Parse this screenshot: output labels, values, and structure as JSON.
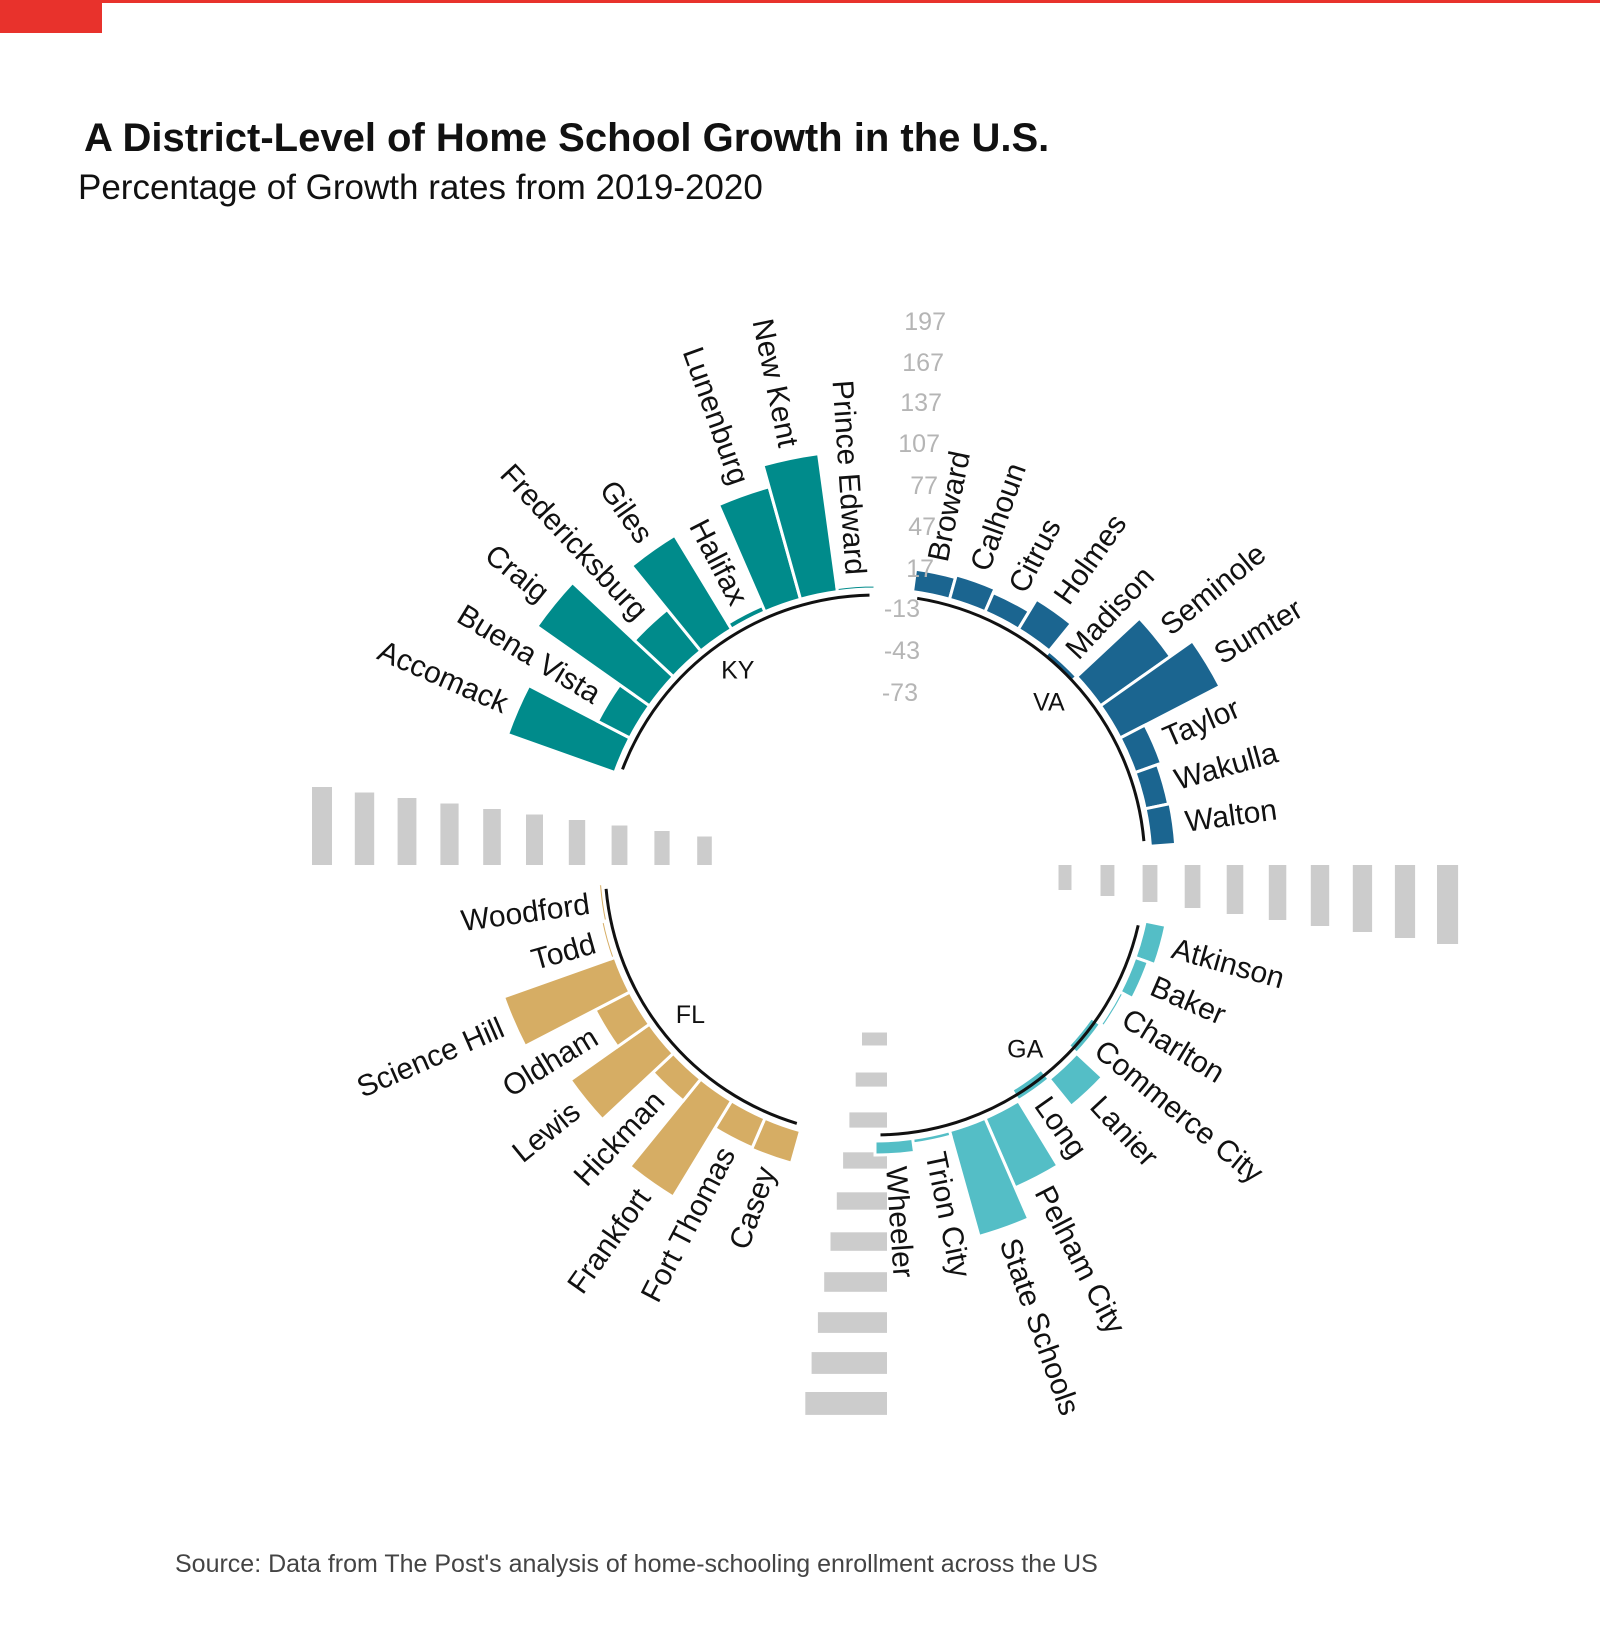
{
  "title": "A District-Level of Home School Growth in the U.S.",
  "subtitle": "Percentage of Growth rates from 2019-2020",
  "source": "Source:  Data from The Post's analysis of home-schooling enrollment across the US",
  "colors": {
    "KY": "#008b8b",
    "VA": "#1b6590",
    "GA": "#54bec6",
    "FL": "#d6ad64",
    "placeholder": "#cccccc",
    "accent": "#e8322c"
  },
  "chart_data": {
    "type": "bar",
    "ylim": [
      -73,
      197
    ],
    "y_ticks": [
      "197",
      "167",
      "137",
      "107",
      "77",
      "47",
      "17",
      "-13",
      "-43",
      "-73"
    ],
    "groups": [
      {
        "name": "KY",
        "categories": [
          "Accomack",
          "Buena Vista",
          "Craig",
          "Fredericksburg",
          "Giles",
          "Halifax",
          "Lunenburg",
          "New Kent",
          "Prince Edward"
        ],
        "values": [
          79,
          24,
          96,
          36,
          76,
          3,
          81,
          97,
          0
        ]
      },
      {
        "name": "VA",
        "categories": [
          "Broward",
          "Calhoun",
          "Citrus",
          "Holmes",
          "Madison",
          "Seminole",
          "Sumter",
          "Taylor",
          "Wakulla",
          "Walton"
        ],
        "values": [
          14,
          16,
          13,
          23,
          -8,
          59,
          78,
          18,
          15,
          16
        ]
      },
      {
        "name": "GA",
        "categories": [
          "Atkinson",
          "Baker",
          "Charlton",
          "Commerce City",
          "Lanier",
          "Long",
          "Pelham City",
          "State Schools",
          "Trion City",
          "Wheeler"
        ],
        "values": [
          13,
          8,
          1,
          -10,
          23,
          -11,
          52,
          76,
          2,
          8
        ]
      },
      {
        "name": "FL",
        "categories": [
          "Casey",
          "Fort Thomas",
          "Frankfort",
          "Hickman",
          "Lewis",
          "Oldham",
          "Science Hill",
          "Todd",
          "Woodford"
        ],
        "values": [
          22,
          21,
          78,
          18,
          67,
          26,
          82,
          0,
          -4
        ]
      }
    ]
  }
}
